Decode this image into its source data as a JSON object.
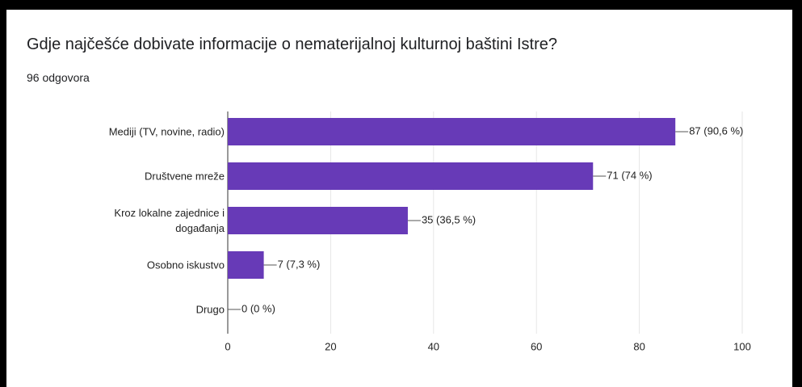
{
  "chart_data": {
    "type": "bar",
    "orientation": "horizontal",
    "title": "Gdje najčešće dobivate informacije o nematerijalnoj kulturnoj baštini Istre?",
    "subtitle": "96 odgovora",
    "categories": [
      "Mediji (TV, novine, radio)",
      "Društvene mreže",
      "Kroz lokalne zajednice i događanja",
      "Osobno iskustvo",
      "Drugo"
    ],
    "values": [
      87,
      71,
      35,
      7,
      0
    ],
    "value_labels": [
      "87 (90,6 %)",
      "71 (74 %)",
      "35 (36,5 %)",
      "7 (7,3 %)",
      "0 (0 %)"
    ],
    "color": "#673ab7",
    "xlim": [
      0,
      100
    ],
    "xticks": [
      0,
      20,
      40,
      60,
      80,
      100
    ],
    "grid": true
  }
}
